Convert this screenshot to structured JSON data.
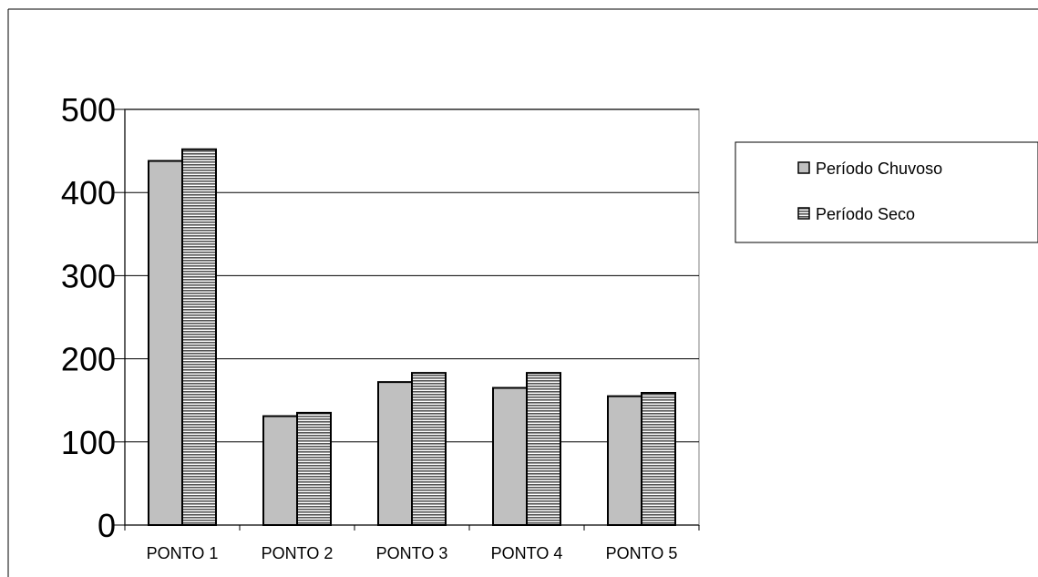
{
  "chart_data": {
    "type": "bar",
    "categories": [
      "PONTO 1",
      "PONTO 2",
      "PONTO 3",
      "PONTO 4",
      "PONTO 5"
    ],
    "series": [
      {
        "name": "Período Chuvoso",
        "values": [
          438,
          131,
          172,
          165,
          155
        ],
        "color": "#c0c0c0",
        "pattern": "solid"
      },
      {
        "name": "Período Seco",
        "values": [
          452,
          135,
          183,
          183,
          159
        ],
        "color": "#7f7f7f",
        "pattern": "horizontal-stripes"
      }
    ],
    "yticks": [
      "0",
      "100",
      "200",
      "300",
      "400",
      "500"
    ],
    "ylim": [
      0,
      500
    ],
    "grid": true,
    "legend": "right"
  }
}
